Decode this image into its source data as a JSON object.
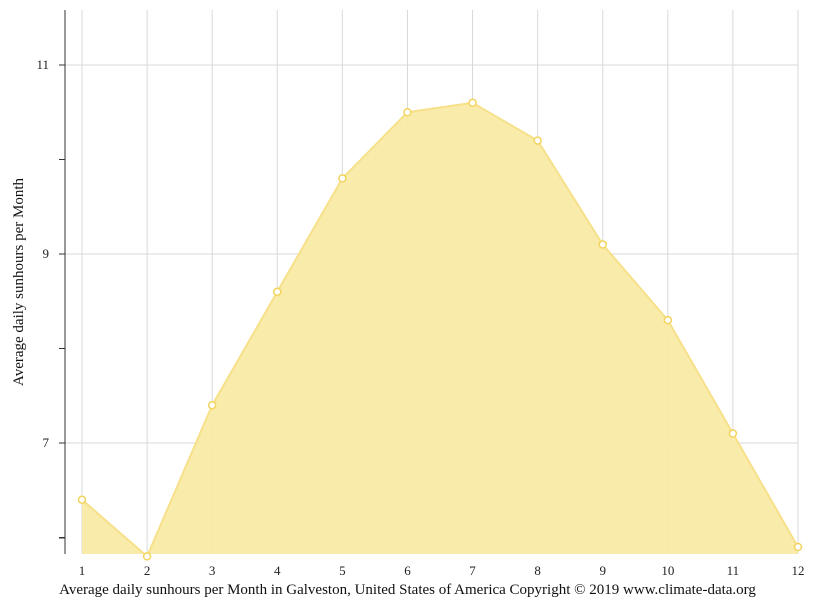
{
  "caption": "Average daily sunhours per Month in Galveston, United States of America Copyright © 2019 www.climate-data.org",
  "chart_data": {
    "type": "area",
    "x": [
      1,
      2,
      3,
      4,
      5,
      6,
      7,
      8,
      9,
      10,
      11,
      12
    ],
    "x_tick_labels": [
      "1",
      "2",
      "3",
      "4",
      "5",
      "6",
      "7",
      "8",
      "9",
      "10",
      "11",
      "12"
    ],
    "series": [
      {
        "values": [
          6.4,
          5.8,
          7.4,
          8.6,
          9.8,
          10.5,
          10.6,
          10.2,
          9.1,
          8.3,
          7.1,
          5.9
        ]
      }
    ],
    "ylabel": "Average daily sunhours per Month",
    "ylim": [
      5.8,
      11.6
    ],
    "y_tick_labels": [
      "7",
      "9",
      "11"
    ],
    "y_ticks_labeled": [
      7,
      9,
      11
    ],
    "y_ticks_minor": [
      6,
      8,
      10
    ],
    "grid": true,
    "colors": {
      "fill": "#f9eaa5",
      "line": "#f7e08a",
      "marker": "#f2d35c",
      "grid": "#d9d9d9",
      "axis": "#333333"
    }
  }
}
